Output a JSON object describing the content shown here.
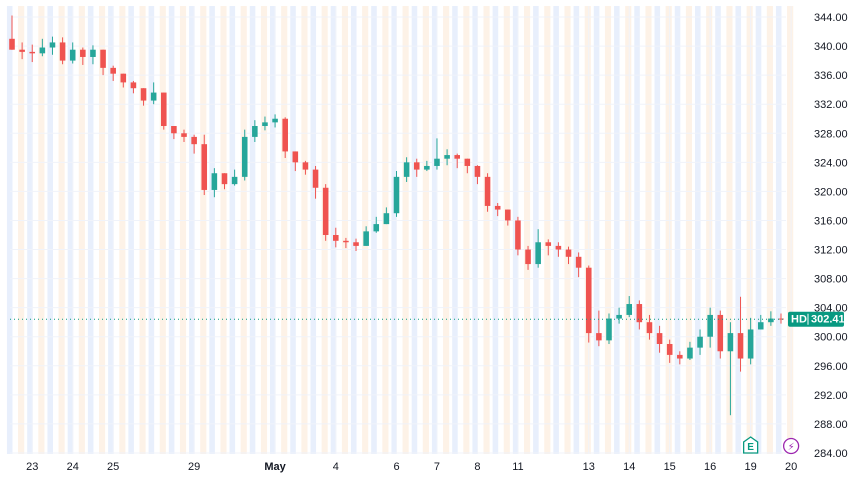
{
  "chart_data": {
    "type": "candlestick",
    "symbol": "HD",
    "last_price": "302.41",
    "last_price_value": 302.41,
    "y_ticks": [
      "344.00",
      "340.00",
      "336.00",
      "332.00",
      "328.00",
      "324.00",
      "320.00",
      "316.00",
      "312.00",
      "308.00",
      "304.00",
      "300.00",
      "296.00",
      "292.00",
      "288.00",
      "284.00"
    ],
    "ylim": [
      284,
      344
    ],
    "x_ticks": [
      {
        "label": "23",
        "bar": 2
      },
      {
        "label": "24",
        "bar": 6
      },
      {
        "label": "25",
        "bar": 10
      },
      {
        "label": "29",
        "bar": 18
      },
      {
        "label": "May",
        "bar": 26,
        "bold": true
      },
      {
        "label": "4",
        "bar": 32
      },
      {
        "label": "6",
        "bar": 38
      },
      {
        "label": "7",
        "bar": 42
      },
      {
        "label": "8",
        "bar": 46
      },
      {
        "label": "11",
        "bar": 50
      },
      {
        "label": "13",
        "bar": 57
      },
      {
        "label": "14",
        "bar": 61
      },
      {
        "label": "15",
        "bar": 65
      },
      {
        "label": "16",
        "bar": 69
      },
      {
        "label": "19",
        "bar": 73
      },
      {
        "label": "20",
        "bar": 77
      }
    ],
    "closes": [
      339.5,
      339.2,
      339.0,
      339.8,
      340.5,
      338.0,
      339.5,
      338.5,
      339.5,
      337.0,
      336.2,
      335.0,
      334.2,
      332.5,
      333.6,
      329.0,
      328.0,
      327.5,
      326.5,
      320.2,
      322.5,
      321.0,
      322.0,
      327.5,
      329.0,
      329.5,
      330.0,
      325.5,
      324.0,
      323.0,
      320.5,
      314.0,
      313.2,
      313.0,
      312.5,
      314.5,
      315.5,
      317.0,
      322.0,
      324.0,
      323.0,
      323.5,
      324.5,
      325.0,
      324.5,
      323.5,
      322.0,
      318.0,
      317.5,
      316.0,
      312.0,
      310.0,
      313.0,
      312.5,
      312.0,
      311.0,
      309.5,
      300.5,
      299.5,
      302.5,
      303.0,
      304.5,
      302.0,
      300.5,
      299.0,
      297.5,
      297.0,
      298.5,
      300.0,
      303.0,
      298.0,
      300.5,
      297.0,
      301.0,
      302.0,
      302.5,
      302.41
    ],
    "highs": [
      344.2,
      340.5,
      340.2,
      341.0,
      341.3,
      341.2,
      340.5,
      339.8,
      340.1,
      338.2,
      337.3,
      336.0,
      335.2,
      334.2,
      335.0,
      333.5,
      329.0,
      328.5,
      327.8,
      327.8,
      323.2,
      322.5,
      323.0,
      328.5,
      329.8,
      330.3,
      330.6,
      330.2,
      325.0,
      324.2,
      323.5,
      321.0,
      315.0,
      313.6,
      313.5,
      315.2,
      316.5,
      317.8,
      322.8,
      324.7,
      324.5,
      324.2,
      327.3,
      325.8,
      325.2,
      324.2,
      323.6,
      322.5,
      318.4,
      317.2,
      316.5,
      312.5,
      314.8,
      313.4,
      313.0,
      312.4,
      311.6,
      309.8,
      303.6,
      303.2,
      304.0,
      305.6,
      305.0,
      303.0,
      301.5,
      299.6,
      298.0,
      299.3,
      301.0,
      304.0,
      303.6,
      302.0,
      305.5,
      302.6,
      303.0,
      303.5,
      303.2
    ],
    "lows": [
      340.5,
      338.2,
      337.8,
      338.6,
      338.8,
      337.5,
      337.6,
      337.4,
      337.5,
      336.0,
      335.2,
      334.3,
      333.5,
      331.8,
      332.0,
      328.5,
      327.2,
      326.8,
      325.2,
      319.5,
      319.2,
      320.3,
      320.8,
      321.5,
      326.8,
      328.4,
      328.8,
      324.6,
      322.8,
      322.3,
      319.0,
      313.2,
      312.3,
      312.2,
      311.8,
      313.6,
      314.3,
      316.2,
      316.5,
      321.3,
      322.0,
      322.8,
      323.0,
      323.6,
      323.2,
      322.5,
      321.0,
      317.2,
      316.6,
      315.3,
      311.2,
      309.2,
      309.5,
      311.2,
      311.0,
      310.0,
      308.2,
      299.2,
      298.7,
      299.0,
      301.8,
      302.7,
      301.0,
      299.6,
      297.8,
      296.4,
      296.2,
      296.8,
      297.5,
      298.5,
      297.0,
      289.2,
      295.2,
      296.2,
      301.2,
      301.5,
      301.8
    ],
    "markers": [
      {
        "type": "earnings",
        "label": "E",
        "bar": 73
      },
      {
        "type": "dividend",
        "label": "⚡",
        "bar": 77
      }
    ],
    "colors": {
      "up": "#26a69a",
      "down": "#ef5350",
      "session_pre": "#e8effc",
      "session_post": "#fdf2e7",
      "price_badge": "#089981",
      "price_line": "#089981",
      "grid": "#f0f3fa",
      "earnings_marker": "#089981",
      "dividend_marker": "#9c27b0"
    },
    "grid": true
  }
}
